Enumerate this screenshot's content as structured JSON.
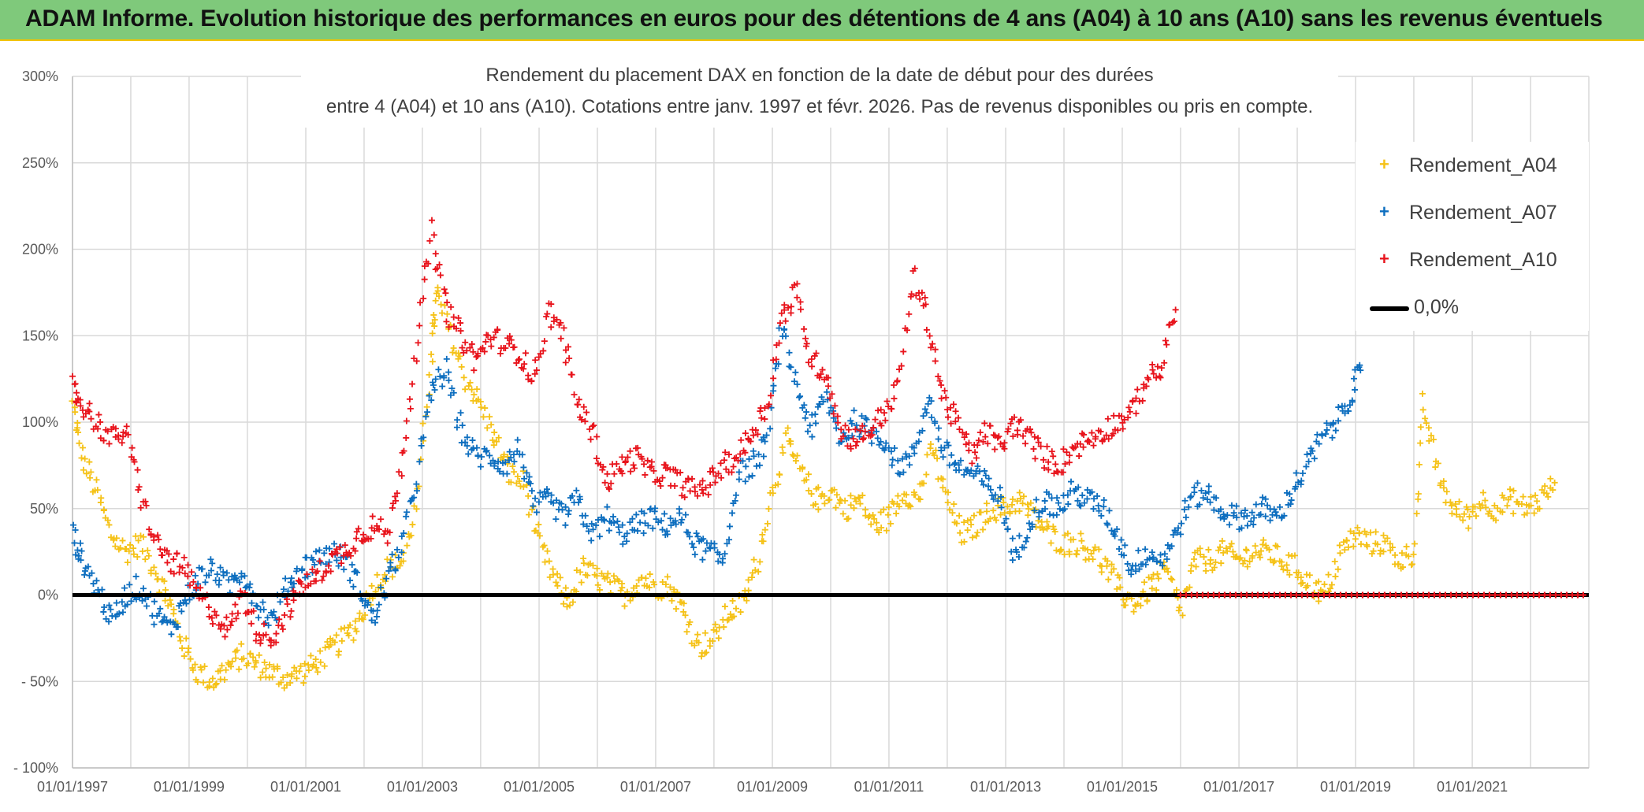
{
  "header": {
    "title": "ADAM Informe. Evolution historique des performances en euros pour des détentions de 4 ans (A04) à 10 ans (A10) sans les revenus éventuels",
    "background": "#7fc97b"
  },
  "chart_data": {
    "type": "scatter",
    "title_line1": "Rendement du placement DAX en fonction de la date de début pour des durées",
    "title_line2": "entre 4 (A04) et 10 ans (A10). Cotations entre janv. 1997 et févr. 2026. Pas de revenus disponibles ou pris en compte.",
    "x_tick_labels": [
      "01/01/1997",
      "01/01/1999",
      "01/01/2001",
      "01/01/2003",
      "01/01/2005",
      "01/01/2007",
      "01/01/2009",
      "01/01/2011",
      "01/01/2013",
      "01/01/2015",
      "01/01/2017",
      "01/01/2019",
      "01/01/2021"
    ],
    "xlim": [
      "1997-01-01",
      "2023-01-01"
    ],
    "y_tick_labels": [
      "300%",
      "250%",
      "200%",
      "150%",
      "100%",
      "50%",
      "0%",
      "- 50%",
      "- 100%"
    ],
    "ylim": [
      -100,
      300
    ],
    "grid": true,
    "legend_position": "top-right",
    "series": [
      {
        "name": "Rendement_A04",
        "color": "#f5c218",
        "marker": "+",
        "points": [
          [
            "1997-01-01",
            110
          ],
          [
            "1997-03-01",
            80
          ],
          [
            "1997-06-01",
            60
          ],
          [
            "1997-09-01",
            35
          ],
          [
            "1997-12-01",
            25
          ],
          [
            "1998-03-01",
            30
          ],
          [
            "1998-06-01",
            15
          ],
          [
            "1998-09-01",
            -5
          ],
          [
            "1998-12-01",
            -30
          ],
          [
            "1999-03-01",
            -45
          ],
          [
            "1999-06-01",
            -50
          ],
          [
            "1999-09-01",
            -42
          ],
          [
            "1999-12-01",
            -35
          ],
          [
            "2000-03-01",
            -40
          ],
          [
            "2000-06-01",
            -45
          ],
          [
            "2000-09-01",
            -48
          ],
          [
            "2000-12-01",
            -45
          ],
          [
            "2001-03-01",
            -40
          ],
          [
            "2001-06-01",
            -32
          ],
          [
            "2001-09-01",
            -25
          ],
          [
            "2001-12-01",
            -15
          ],
          [
            "2002-03-01",
            5
          ],
          [
            "2002-06-01",
            15
          ],
          [
            "2002-09-01",
            20
          ],
          [
            "2002-12-01",
            55
          ],
          [
            "2003-03-01",
            140
          ],
          [
            "2003-04-01",
            175
          ],
          [
            "2003-07-01",
            150
          ],
          [
            "2003-10-01",
            125
          ],
          [
            "2004-01-01",
            110
          ],
          [
            "2004-04-01",
            90
          ],
          [
            "2004-07-01",
            70
          ],
          [
            "2004-10-01",
            65
          ],
          [
            "2005-01-01",
            30
          ],
          [
            "2005-04-01",
            10
          ],
          [
            "2005-07-01",
            -5
          ],
          [
            "2005-10-01",
            15
          ],
          [
            "2006-01-01",
            10
          ],
          [
            "2006-04-01",
            5
          ],
          [
            "2006-07-01",
            0
          ],
          [
            "2006-10-01",
            10
          ],
          [
            "2007-01-01",
            5
          ],
          [
            "2007-04-01",
            5
          ],
          [
            "2007-07-01",
            -10
          ],
          [
            "2007-10-01",
            -30
          ],
          [
            "2008-01-01",
            -25
          ],
          [
            "2008-04-01",
            -10
          ],
          [
            "2008-07-01",
            -5
          ],
          [
            "2008-10-01",
            20
          ],
          [
            "2009-01-01",
            60
          ],
          [
            "2009-04-01",
            90
          ],
          [
            "2009-07-01",
            70
          ],
          [
            "2009-10-01",
            55
          ],
          [
            "2010-01-01",
            60
          ],
          [
            "2010-04-01",
            50
          ],
          [
            "2010-07-01",
            55
          ],
          [
            "2010-10-01",
            40
          ],
          [
            "2011-01-01",
            45
          ],
          [
            "2011-04-01",
            60
          ],
          [
            "2011-07-01",
            55
          ],
          [
            "2011-10-01",
            85
          ],
          [
            "2012-01-01",
            55
          ],
          [
            "2012-04-01",
            35
          ],
          [
            "2012-07-01",
            40
          ],
          [
            "2012-10-01",
            50
          ],
          [
            "2013-01-01",
            50
          ],
          [
            "2013-04-01",
            55
          ],
          [
            "2013-07-01",
            45
          ],
          [
            "2013-10-01",
            35
          ],
          [
            "2014-01-01",
            30
          ],
          [
            "2014-04-01",
            30
          ],
          [
            "2014-07-01",
            25
          ],
          [
            "2014-10-01",
            15
          ],
          [
            "2015-01-01",
            0
          ],
          [
            "2015-04-01",
            -5
          ],
          [
            "2015-07-01",
            5
          ],
          [
            "2015-10-01",
            15
          ],
          [
            "2016-01-01",
            -10
          ],
          [
            "2016-04-01",
            20
          ],
          [
            "2016-07-01",
            20
          ],
          [
            "2016-10-01",
            25
          ],
          [
            "2017-01-01",
            20
          ],
          [
            "2017-04-01",
            25
          ],
          [
            "2017-07-01",
            25
          ],
          [
            "2017-10-01",
            20
          ],
          [
            "2018-01-01",
            15
          ],
          [
            "2018-04-01",
            5
          ],
          [
            "2018-07-01",
            0
          ],
          [
            "2018-10-01",
            25
          ],
          [
            "2019-01-01",
            35
          ],
          [
            "2019-04-01",
            30
          ],
          [
            "2019-07-01",
            30
          ],
          [
            "2019-10-01",
            20
          ],
          [
            "2020-01-01",
            25
          ],
          [
            "2020-03-01",
            110
          ],
          [
            "2020-06-01",
            70
          ],
          [
            "2020-09-01",
            50
          ],
          [
            "2020-12-01",
            45
          ],
          [
            "2021-03-01",
            55
          ],
          [
            "2021-06-01",
            50
          ],
          [
            "2021-09-01",
            55
          ],
          [
            "2021-12-01",
            50
          ],
          [
            "2022-03-01",
            55
          ],
          [
            "2022-06-01",
            65
          ]
        ]
      },
      {
        "name": "Rendement_A07",
        "color": "#0d6ebf",
        "marker": "+",
        "points": [
          [
            "1997-01-01",
            35
          ],
          [
            "1997-03-01",
            20
          ],
          [
            "1997-06-01",
            5
          ],
          [
            "1997-09-01",
            -15
          ],
          [
            "1997-12-01",
            0
          ],
          [
            "1998-03-01",
            5
          ],
          [
            "1998-06-01",
            -10
          ],
          [
            "1998-09-01",
            -20
          ],
          [
            "1998-12-01",
            -5
          ],
          [
            "1999-03-01",
            10
          ],
          [
            "1999-06-01",
            15
          ],
          [
            "1999-09-01",
            5
          ],
          [
            "1999-12-01",
            15
          ],
          [
            "2000-03-01",
            -5
          ],
          [
            "2000-06-01",
            -15
          ],
          [
            "2000-09-01",
            5
          ],
          [
            "2000-12-01",
            15
          ],
          [
            "2001-03-01",
            20
          ],
          [
            "2001-06-01",
            25
          ],
          [
            "2001-09-01",
            20
          ],
          [
            "2001-12-01",
            5
          ],
          [
            "2002-03-01",
            -15
          ],
          [
            "2002-06-01",
            10
          ],
          [
            "2002-09-01",
            30
          ],
          [
            "2002-12-01",
            70
          ],
          [
            "2003-03-01",
            120
          ],
          [
            "2003-06-01",
            130
          ],
          [
            "2003-09-01",
            95
          ],
          [
            "2003-12-01",
            80
          ],
          [
            "2004-03-01",
            80
          ],
          [
            "2004-06-01",
            75
          ],
          [
            "2004-09-01",
            85
          ],
          [
            "2004-12-01",
            50
          ],
          [
            "2005-03-01",
            55
          ],
          [
            "2005-06-01",
            45
          ],
          [
            "2005-09-01",
            55
          ],
          [
            "2005-12-01",
            35
          ],
          [
            "2006-03-01",
            45
          ],
          [
            "2006-06-01",
            35
          ],
          [
            "2006-09-01",
            40
          ],
          [
            "2006-12-01",
            45
          ],
          [
            "2007-03-01",
            40
          ],
          [
            "2007-06-01",
            45
          ],
          [
            "2007-09-01",
            30
          ],
          [
            "2007-12-01",
            25
          ],
          [
            "2008-03-01",
            20
          ],
          [
            "2008-06-01",
            70
          ],
          [
            "2008-09-01",
            75
          ],
          [
            "2008-12-01",
            90
          ],
          [
            "2009-03-01",
            155
          ],
          [
            "2009-06-01",
            120
          ],
          [
            "2009-09-01",
            95
          ],
          [
            "2009-12-01",
            115
          ],
          [
            "2010-03-01",
            90
          ],
          [
            "2010-06-01",
            100
          ],
          [
            "2010-09-01",
            95
          ],
          [
            "2010-12-01",
            90
          ],
          [
            "2011-03-01",
            75
          ],
          [
            "2011-06-01",
            80
          ],
          [
            "2011-09-01",
            115
          ],
          [
            "2011-12-01",
            85
          ],
          [
            "2012-03-01",
            75
          ],
          [
            "2012-06-01",
            70
          ],
          [
            "2012-09-01",
            65
          ],
          [
            "2012-12-01",
            55
          ],
          [
            "2013-03-01",
            20
          ],
          [
            "2013-06-01",
            45
          ],
          [
            "2013-09-01",
            55
          ],
          [
            "2013-12-01",
            50
          ],
          [
            "2014-03-01",
            60
          ],
          [
            "2014-06-01",
            55
          ],
          [
            "2014-09-01",
            50
          ],
          [
            "2014-12-01",
            35
          ],
          [
            "2015-03-01",
            15
          ],
          [
            "2015-06-01",
            25
          ],
          [
            "2015-09-01",
            20
          ],
          [
            "2015-12-01",
            35
          ],
          [
            "2016-03-01",
            55
          ],
          [
            "2016-06-01",
            60
          ],
          [
            "2016-09-01",
            50
          ],
          [
            "2016-12-01",
            45
          ],
          [
            "2017-03-01",
            45
          ],
          [
            "2017-06-01",
            50
          ],
          [
            "2017-09-01",
            45
          ],
          [
            "2017-12-01",
            60
          ],
          [
            "2018-03-01",
            75
          ],
          [
            "2018-06-01",
            90
          ],
          [
            "2018-09-01",
            100
          ],
          [
            "2018-12-01",
            115
          ],
          [
            "2019-02-01",
            130
          ]
        ]
      },
      {
        "name": "Rendement_A10",
        "color": "#e8141c",
        "marker": "+",
        "points": [
          [
            "1997-01-01",
            120
          ],
          [
            "1997-03-01",
            110
          ],
          [
            "1997-06-01",
            100
          ],
          [
            "1997-09-01",
            90
          ],
          [
            "1997-12-01",
            95
          ],
          [
            "1998-03-01",
            60
          ],
          [
            "1998-06-01",
            30
          ],
          [
            "1998-09-01",
            20
          ],
          [
            "1998-12-01",
            15
          ],
          [
            "1999-03-01",
            0
          ],
          [
            "1999-06-01",
            -10
          ],
          [
            "1999-09-01",
            -20
          ],
          [
            "1999-12-01",
            0
          ],
          [
            "2000-03-01",
            -20
          ],
          [
            "2000-06-01",
            -25
          ],
          [
            "2000-09-01",
            -10
          ],
          [
            "2000-12-01",
            5
          ],
          [
            "2001-03-01",
            10
          ],
          [
            "2001-06-01",
            20
          ],
          [
            "2001-09-01",
            25
          ],
          [
            "2001-12-01",
            35
          ],
          [
            "2002-03-01",
            40
          ],
          [
            "2002-06-01",
            35
          ],
          [
            "2002-09-01",
            80
          ],
          [
            "2002-12-01",
            150
          ],
          [
            "2003-03-01",
            210
          ],
          [
            "2003-06-01",
            165
          ],
          [
            "2003-09-01",
            150
          ],
          [
            "2003-12-01",
            135
          ],
          [
            "2004-03-01",
            150
          ],
          [
            "2004-06-01",
            145
          ],
          [
            "2004-09-01",
            140
          ],
          [
            "2004-12-01",
            125
          ],
          [
            "2005-03-01",
            165
          ],
          [
            "2005-06-01",
            150
          ],
          [
            "2005-09-01",
            110
          ],
          [
            "2005-12-01",
            95
          ],
          [
            "2006-03-01",
            65
          ],
          [
            "2006-06-01",
            75
          ],
          [
            "2006-09-01",
            80
          ],
          [
            "2006-12-01",
            70
          ],
          [
            "2007-03-01",
            70
          ],
          [
            "2007-06-01",
            65
          ],
          [
            "2007-09-01",
            60
          ],
          [
            "2007-12-01",
            65
          ],
          [
            "2008-03-01",
            75
          ],
          [
            "2008-06-01",
            80
          ],
          [
            "2008-09-01",
            95
          ],
          [
            "2008-12-01",
            110
          ],
          [
            "2009-03-01",
            160
          ],
          [
            "2009-06-01",
            175
          ],
          [
            "2009-09-01",
            135
          ],
          [
            "2009-12-01",
            130
          ],
          [
            "2010-03-01",
            95
          ],
          [
            "2010-06-01",
            90
          ],
          [
            "2010-09-01",
            95
          ],
          [
            "2010-12-01",
            105
          ],
          [
            "2011-03-01",
            120
          ],
          [
            "2011-06-01",
            185
          ],
          [
            "2011-09-01",
            160
          ],
          [
            "2011-12-01",
            115
          ],
          [
            "2012-03-01",
            100
          ],
          [
            "2012-06-01",
            80
          ],
          [
            "2012-09-01",
            95
          ],
          [
            "2012-12-01",
            85
          ],
          [
            "2013-03-01",
            100
          ],
          [
            "2013-06-01",
            90
          ],
          [
            "2013-09-01",
            80
          ],
          [
            "2013-12-01",
            75
          ],
          [
            "2014-03-01",
            85
          ],
          [
            "2014-06-01",
            90
          ],
          [
            "2014-09-01",
            95
          ],
          [
            "2014-12-01",
            100
          ],
          [
            "2015-03-01",
            105
          ],
          [
            "2015-06-01",
            125
          ],
          [
            "2015-09-01",
            130
          ],
          [
            "2015-12-01",
            165
          ]
        ]
      },
      {
        "name": "0,0%",
        "color": "#000000",
        "marker": "line"
      }
    ],
    "zero_line_red_points_start": "2016-01-01"
  }
}
